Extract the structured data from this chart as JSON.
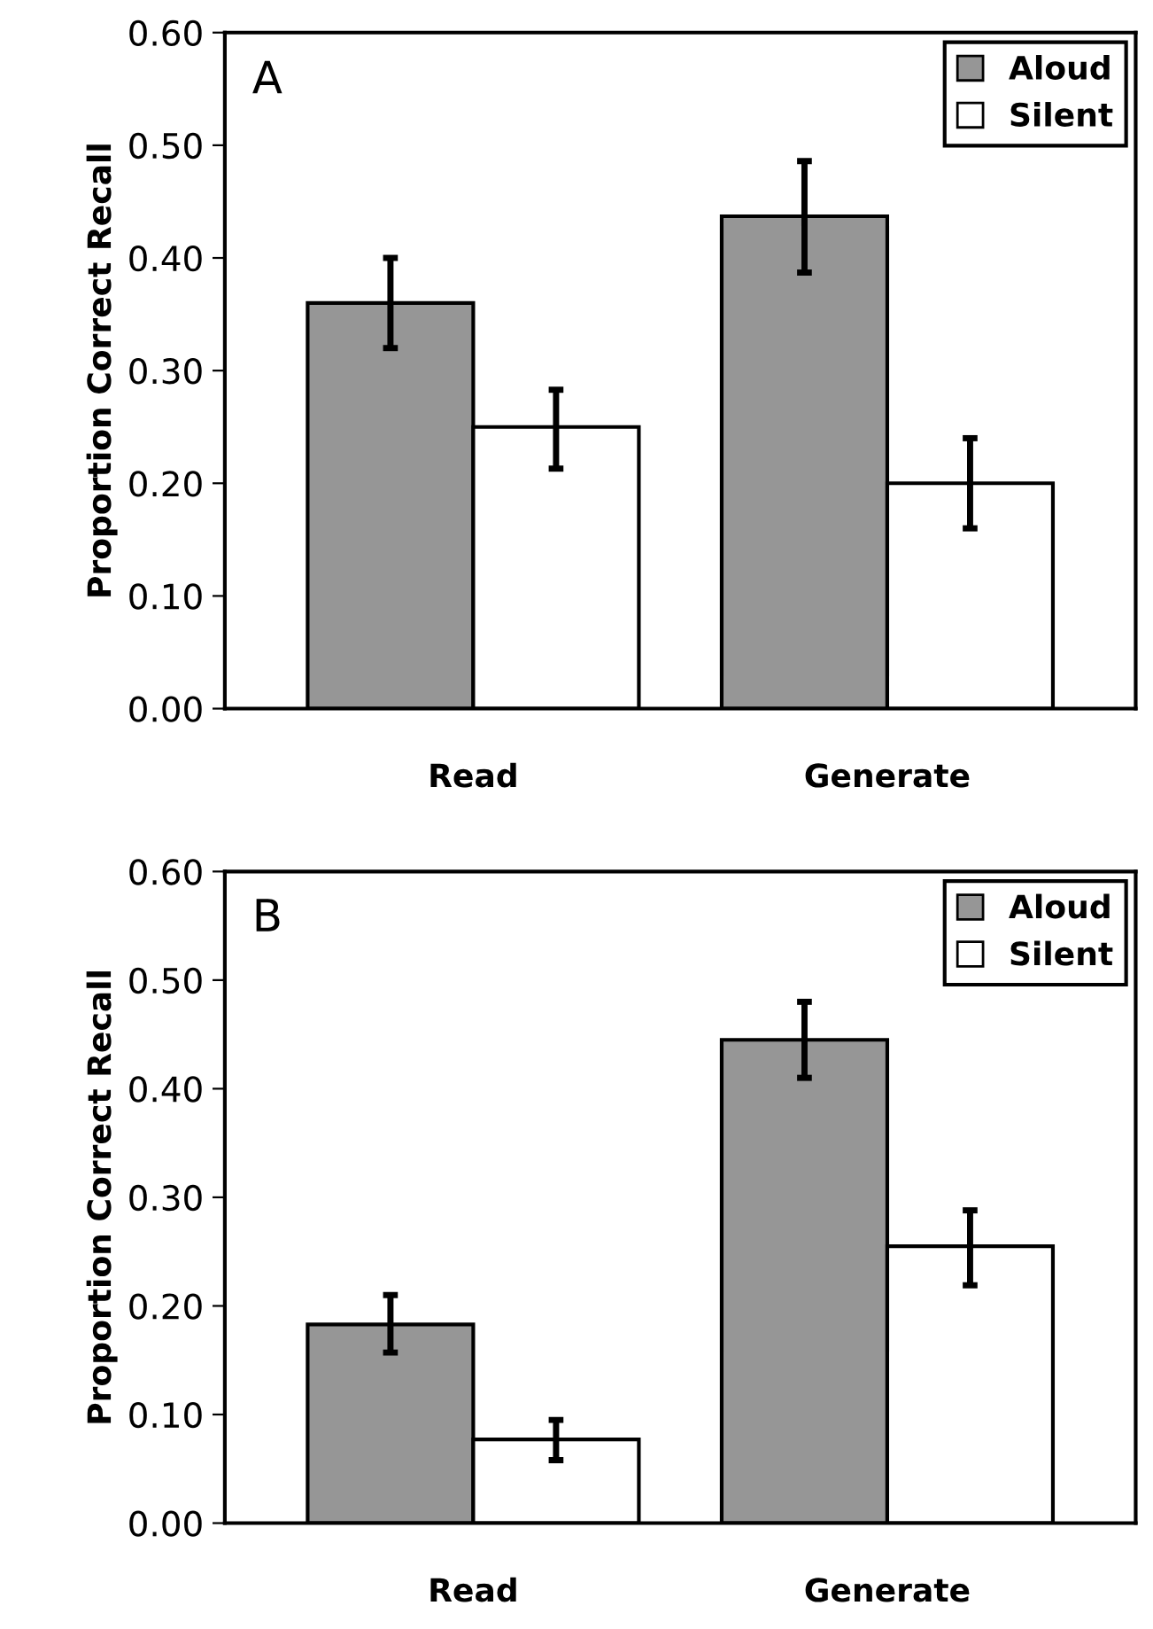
{
  "chart_data": [
    {
      "type": "bar",
      "ylabel": "Proportion Correct Recall",
      "annotations": [
        "A"
      ],
      "categories": [
        "Read",
        "Generate"
      ],
      "series": [
        {
          "name": "Aloud",
          "color": "#969696",
          "values": [
            0.36,
            0.437
          ],
          "errors": [
            [
              0.32,
              0.4
            ],
            [
              0.387,
              0.486
            ]
          ]
        },
        {
          "name": "Silent",
          "color": "#ffffff",
          "values": [
            0.25,
            0.2
          ],
          "errors": [
            [
              0.213,
              0.283
            ],
            [
              0.16,
              0.24
            ]
          ]
        }
      ],
      "ylim": [
        0,
        0.6
      ],
      "yticks": [
        {
          "value": 0,
          "label": "0.00"
        },
        {
          "value": 0.1,
          "label": "0.10"
        },
        {
          "value": 0.2,
          "label": "0.20"
        },
        {
          "value": 0.3,
          "label": "0.30"
        },
        {
          "value": 0.4,
          "label": "0.40"
        },
        {
          "value": 0.5,
          "label": "0.50"
        },
        {
          "value": 0.6,
          "label": "0.60"
        }
      ],
      "legend": "top right",
      "grid": false
    },
    {
      "type": "bar",
      "ylabel": "Proportion Correct Recall",
      "annotations": [
        "B"
      ],
      "categories": [
        "Read",
        "Generate"
      ],
      "series": [
        {
          "name": "Aloud",
          "color": "#969696",
          "values": [
            0.183,
            0.445
          ],
          "errors": [
            [
              0.157,
              0.21
            ],
            [
              0.41,
              0.48
            ]
          ]
        },
        {
          "name": "Silent",
          "color": "#ffffff",
          "values": [
            0.077,
            0.255
          ],
          "errors": [
            [
              0.058,
              0.095
            ],
            [
              0.219,
              0.288
            ]
          ]
        }
      ],
      "ylim": [
        0,
        0.6
      ],
      "yticks": [
        {
          "value": 0,
          "label": "0.00"
        },
        {
          "value": 0.1,
          "label": "0.10"
        },
        {
          "value": 0.2,
          "label": "0.20"
        },
        {
          "value": 0.3,
          "label": "0.30"
        },
        {
          "value": 0.4,
          "label": "0.40"
        },
        {
          "value": 0.5,
          "label": "0.50"
        },
        {
          "value": 0.6,
          "label": "0.60"
        }
      ],
      "legend": "top right",
      "grid": false
    }
  ]
}
